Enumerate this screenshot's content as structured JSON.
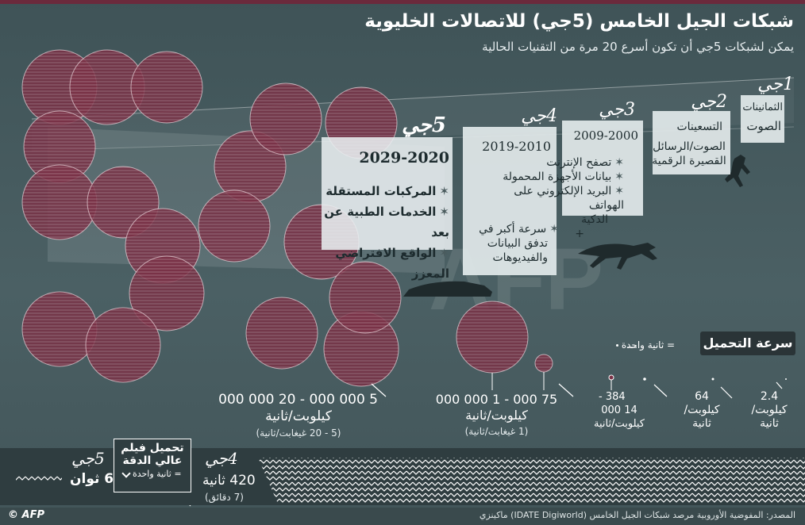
{
  "title": "شبكات الجيل الخامس (5جي) للاتصالات الخليوية",
  "subtitle": "يمكن لشبكات 5جي أن تكون أسرع 20 مرة من التقنيات الحالية",
  "generations": [
    {
      "gen": "1جي",
      "era": "الثمانينات",
      "features": [
        "الصوت"
      ]
    },
    {
      "gen": "2جي",
      "era": "التسعينات",
      "features": [
        "الصوت/الرسائل",
        "القصيرة الرقمية"
      ]
    },
    {
      "gen": "3جي",
      "era": "2009-2000",
      "features": [
        "تصفح الإنترنت",
        "بيانات الأجهزة المحمولة",
        "البريد الإلكتروني على الهواتف",
        "الذكية"
      ]
    },
    {
      "gen": "4جي",
      "era": "2019-2010",
      "features": [
        "سرعة أكبر في",
        "تدفق البيانات",
        "والفيديوهات"
      ]
    },
    {
      "gen": "5جي",
      "era": "2029-2020",
      "features": [
        "المركبات المستقلة",
        "الخدمات الطبية عن بعد",
        "الواقع الافتراضي المعزز"
      ]
    }
  ],
  "plus_sign": "+",
  "download_speed": {
    "title": "سرعة التحميل",
    "legend": "= ثانية واحدة",
    "items": [
      {
        "range": "2.4",
        "unit1": "كيلوبت/",
        "unit2": "ثانية"
      },
      {
        "range": "64",
        "unit1": "كيلوبت/",
        "unit2": "ثانية"
      },
      {
        "range": "384 -",
        "range2": "14 000",
        "unit1": "كيلوبت/ثانية"
      },
      {
        "range": "75 000 - 1 000 000",
        "unit1": "كيلوبت/ثانية",
        "alt": "(1 غيغابت/ثانية)"
      },
      {
        "range": "5 000 000 - 20 000 000",
        "unit1": "كيلوبت/ثانية",
        "alt": "(5 - 20 غيغابت/ثانية)"
      }
    ]
  },
  "hd_movie": {
    "box_line1": "تحميل فيلم",
    "box_line2": "عالي الدقة",
    "legend": "= ثانية واحدة",
    "g5_label": "5جي",
    "g5_time": "6 ثوان",
    "g4_label": "4جي",
    "g4_time": "420 ثانية",
    "g4_alt": "(7 دقائق)"
  },
  "source": "المصدر: المفوضية الأوروبية مرصد شبكات الجيل الخامس (IDATE Digiworld) ماكينزي",
  "credit": "© AFP",
  "watermark": "AFP",
  "colors": {
    "bg": "#455a5e",
    "accent": "#6b2a3c",
    "panel": "#e1e8ea",
    "circle": "#7a3146"
  }
}
